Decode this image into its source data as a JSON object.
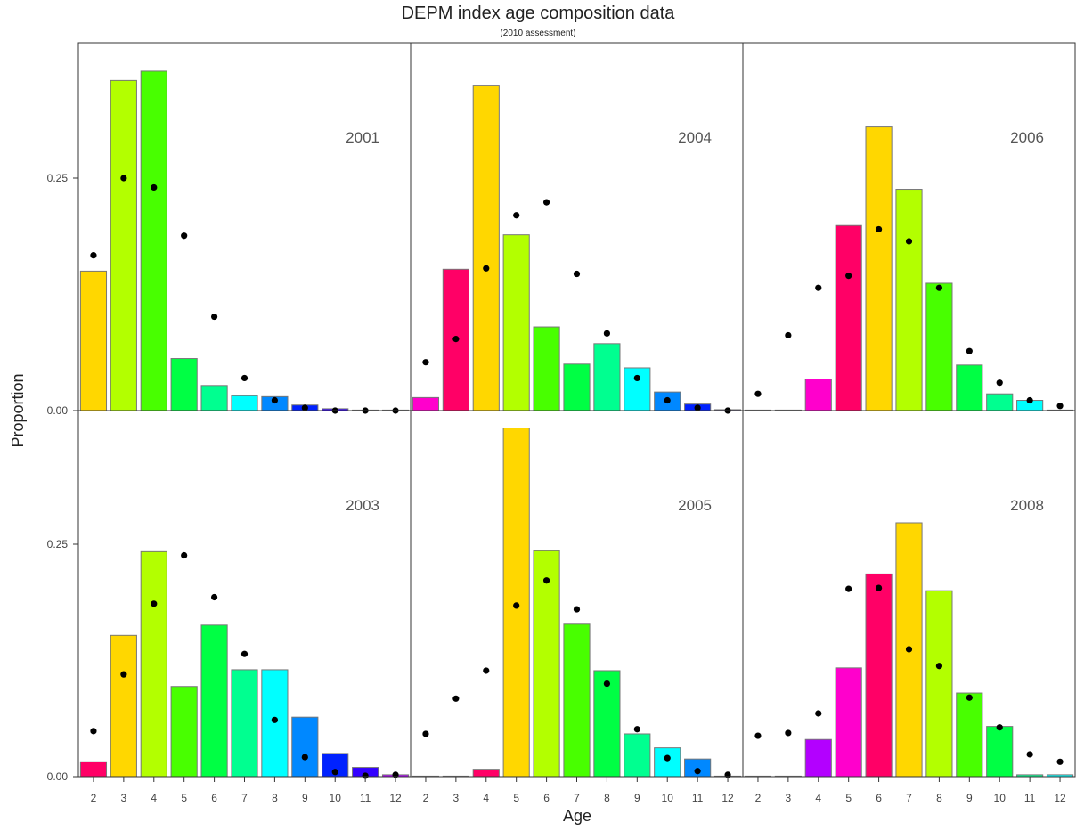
{
  "chart_data": {
    "type": "bar",
    "title": "DEPM index age composition data",
    "subtitle": "(2010 assessment)",
    "xlabel": "Age",
    "ylabel": "Proportion",
    "ylim": [
      0,
      0.365
    ],
    "y_ticks": [
      0.0,
      0.25
    ],
    "y_tick_labels": [
      "0.00",
      "0.25"
    ],
    "categories": [
      "2",
      "3",
      "4",
      "5",
      "6",
      "7",
      "8",
      "9",
      "10",
      "11",
      "12"
    ],
    "legend": "none",
    "grid": false,
    "colors": [
      "#ff0066",
      "#ffd700",
      "#b3ff00",
      "#48ff00",
      "#00ff44",
      "#00ff90",
      "#00ffff",
      "#0088ff",
      "#0022ff",
      "#3300ff",
      "#b300ff",
      "#ff00cc"
    ],
    "panels": [
      {
        "label": "2001",
        "position": "top-left",
        "bars": [
          0.15,
          0.355,
          0.365,
          0.056,
          0.027,
          0.016,
          0.015,
          0.006,
          0.002,
          0.0,
          0.0
        ],
        "bar_colors": [
          "#ffd700",
          "#b3ff00",
          "#48ff00",
          "#00ff44",
          "#00ff90",
          "#00ffff",
          "#0088ff",
          "#0022ff",
          "#3300ff",
          "#b300ff",
          "#ff00cc"
        ],
        "points": [
          0.167,
          0.25,
          0.24,
          0.188,
          0.101,
          0.035,
          0.011,
          0.003,
          0.0,
          0.0,
          0.0
        ]
      },
      {
        "label": "2004",
        "position": "top-middle",
        "bars": [
          0.014,
          0.152,
          0.35,
          0.189,
          0.09,
          0.05,
          0.072,
          0.046,
          0.02,
          0.007,
          0.001
        ],
        "bar_colors": [
          "#ff00cc",
          "#ff0066",
          "#ffd700",
          "#b3ff00",
          "#48ff00",
          "#00ff44",
          "#00ff90",
          "#00ffff",
          "#0088ff",
          "#0022ff",
          "#3300ff"
        ],
        "points": [
          0.052,
          0.077,
          0.153,
          0.21,
          0.224,
          0.147,
          0.083,
          0.035,
          0.011,
          0.003,
          0.0
        ]
      },
      {
        "label": "2006",
        "position": "top-right",
        "bars": [
          0.0,
          0.0,
          0.034,
          0.199,
          0.305,
          0.238,
          0.137,
          0.049,
          0.018,
          0.011,
          0.0
        ],
        "bar_colors": [
          "#3300ff",
          "#b300ff",
          "#ff00cc",
          "#ff0066",
          "#ffd700",
          "#b3ff00",
          "#48ff00",
          "#00ff44",
          "#00ff90",
          "#00ffff",
          "#0088ff"
        ],
        "points": [
          0.018,
          0.081,
          0.132,
          0.145,
          0.195,
          0.182,
          0.132,
          0.064,
          0.03,
          0.011,
          0.005
        ]
      },
      {
        "label": "2003",
        "position": "bottom-left",
        "bars": [
          0.016,
          0.152,
          0.242,
          0.097,
          0.163,
          0.115,
          0.115,
          0.064,
          0.025,
          0.01,
          0.002
        ],
        "bar_colors": [
          "#ff0066",
          "#ffd700",
          "#b3ff00",
          "#48ff00",
          "#00ff44",
          "#00ff90",
          "#00ffff",
          "#0088ff",
          "#0022ff",
          "#3300ff",
          "#b300ff"
        ],
        "points": [
          0.049,
          0.11,
          0.186,
          0.238,
          0.193,
          0.132,
          0.061,
          0.021,
          0.005,
          0.001,
          0.002
        ]
      },
      {
        "label": "2005",
        "position": "bottom-middle",
        "bars": [
          0.0,
          0.0,
          0.008,
          0.375,
          0.243,
          0.164,
          0.114,
          0.046,
          0.031,
          0.019,
          0.0
        ],
        "bar_colors": [
          "#0022ff",
          "#3300ff",
          "#ff0066",
          "#ffd700",
          "#b3ff00",
          "#48ff00",
          "#00ff44",
          "#00ff90",
          "#00ffff",
          "#0088ff",
          "#0022ff"
        ],
        "points": [
          0.046,
          0.084,
          0.114,
          0.184,
          0.211,
          0.18,
          0.1,
          0.051,
          0.02,
          0.006,
          0.002
        ]
      },
      {
        "label": "2008",
        "position": "bottom-right",
        "bars": [
          0.0,
          0.0,
          0.04,
          0.117,
          0.218,
          0.273,
          0.2,
          0.09,
          0.054,
          0.002,
          0.002
        ],
        "bar_colors": [
          "#0022ff",
          "#3300ff",
          "#b300ff",
          "#ff00cc",
          "#ff0066",
          "#ffd700",
          "#b3ff00",
          "#48ff00",
          "#00ff44",
          "#00ff90",
          "#00ffff"
        ],
        "points": [
          0.044,
          0.047,
          0.068,
          0.202,
          0.203,
          0.137,
          0.119,
          0.085,
          0.053,
          0.024,
          0.016
        ]
      }
    ]
  }
}
